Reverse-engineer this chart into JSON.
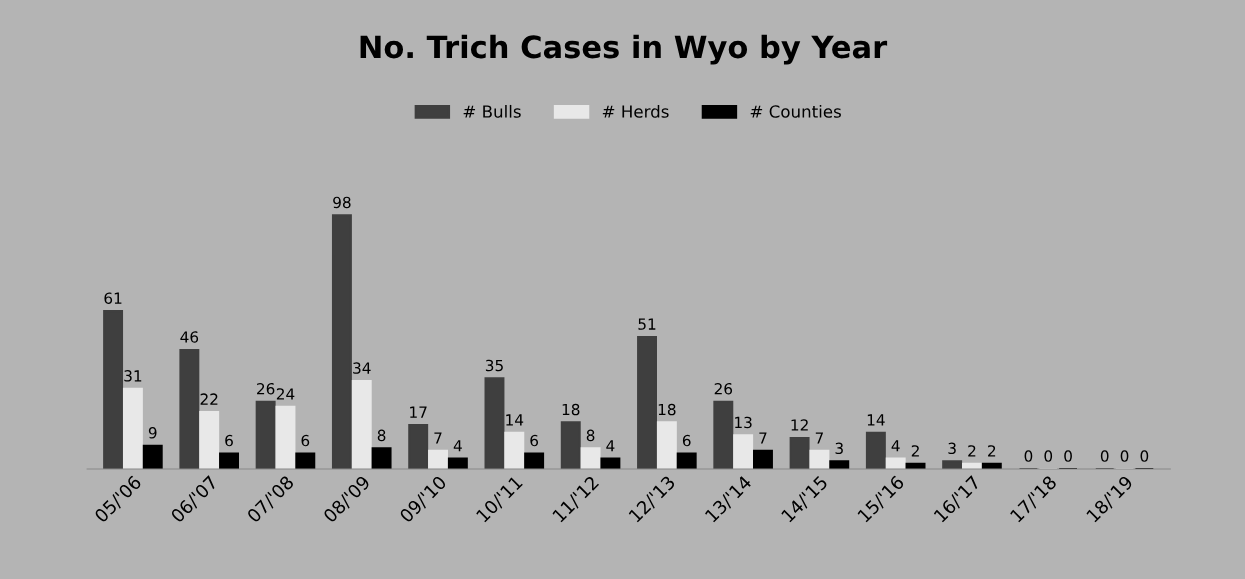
{
  "chart_data": {
    "type": "bar",
    "title": "No. Trich Cases in Wyo by Year",
    "categories": [
      "05/'06",
      "06/'07",
      "07/'08",
      "08/'09",
      "09/'10",
      "10/'11",
      "11/'12",
      "12/'13",
      "13/'14",
      "14/'15",
      "15/'16",
      "16/'17",
      "17/'18",
      "18/'19"
    ],
    "series": [
      {
        "name": "# Bulls",
        "color": "#3f3f3f",
        "values": [
          61,
          46,
          26,
          98,
          17,
          35,
          18,
          51,
          26,
          12,
          14,
          3,
          0,
          0
        ]
      },
      {
        "name": "# Herds",
        "color": "#e8e8e8",
        "values": [
          31,
          22,
          24,
          34,
          7,
          14,
          8,
          18,
          13,
          7,
          4,
          2,
          0,
          0
        ]
      },
      {
        "name": "# Counties",
        "color": "#000000",
        "values": [
          9,
          6,
          6,
          8,
          4,
          6,
          4,
          6,
          7,
          3,
          2,
          2,
          0,
          0
        ]
      }
    ],
    "data_labels": true,
    "legend": "top",
    "grid": false
  }
}
